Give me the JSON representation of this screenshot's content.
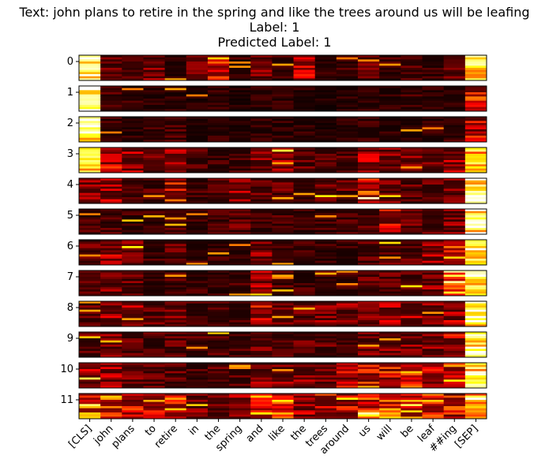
{
  "title": {
    "line1": "Text: john plans to retire in the spring and like the trees around us will be leafing",
    "line2": "Label: 1",
    "line3": "Predicted Label: 1"
  },
  "chart_data": {
    "type": "heatmap",
    "colormap": "hot",
    "layers": [
      "0",
      "1",
      "2",
      "3",
      "4",
      "5",
      "6",
      "7",
      "8",
      "9",
      "10",
      "11"
    ],
    "tokens": [
      "[CLS]",
      "john",
      "plans",
      "to",
      "retire",
      "in",
      "the",
      "spring",
      "and",
      "like",
      "the",
      "trees",
      "around",
      "us",
      "will",
      "be",
      "leaf",
      "##ing",
      "[SEP]"
    ],
    "heads_per_layer": 12,
    "layer_column_intensity": [
      [
        0.95,
        0.15,
        0.15,
        0.2,
        0.1,
        0.25,
        0.45,
        0.1,
        0.2,
        0.1,
        0.35,
        0.1,
        0.1,
        0.15,
        0.1,
        0.15,
        0.1,
        0.2,
        0.85
      ],
      [
        0.95,
        0.12,
        0.1,
        0.08,
        0.08,
        0.06,
        0.08,
        0.06,
        0.08,
        0.08,
        0.08,
        0.06,
        0.08,
        0.1,
        0.08,
        0.1,
        0.08,
        0.1,
        0.35
      ],
      [
        0.98,
        0.1,
        0.08,
        0.1,
        0.12,
        0.08,
        0.08,
        0.06,
        0.08,
        0.08,
        0.08,
        0.06,
        0.08,
        0.1,
        0.08,
        0.08,
        0.08,
        0.1,
        0.3
      ],
      [
        0.85,
        0.3,
        0.25,
        0.15,
        0.3,
        0.12,
        0.1,
        0.12,
        0.2,
        0.25,
        0.15,
        0.15,
        0.15,
        0.25,
        0.2,
        0.2,
        0.2,
        0.25,
        0.8
      ],
      [
        0.25,
        0.25,
        0.15,
        0.12,
        0.35,
        0.12,
        0.15,
        0.25,
        0.15,
        0.15,
        0.15,
        0.2,
        0.15,
        0.45,
        0.2,
        0.15,
        0.15,
        0.2,
        0.95
      ],
      [
        0.12,
        0.12,
        0.1,
        0.1,
        0.2,
        0.1,
        0.1,
        0.15,
        0.1,
        0.12,
        0.1,
        0.1,
        0.12,
        0.15,
        0.3,
        0.15,
        0.15,
        0.2,
        0.98
      ],
      [
        0.15,
        0.25,
        0.25,
        0.1,
        0.15,
        0.1,
        0.1,
        0.1,
        0.2,
        0.12,
        0.1,
        0.1,
        0.1,
        0.15,
        0.15,
        0.15,
        0.25,
        0.55,
        0.98
      ],
      [
        0.2,
        0.2,
        0.15,
        0.1,
        0.12,
        0.1,
        0.1,
        0.12,
        0.25,
        0.12,
        0.1,
        0.12,
        0.12,
        0.15,
        0.15,
        0.15,
        0.2,
        0.6,
        0.98
      ],
      [
        0.15,
        0.25,
        0.25,
        0.15,
        0.2,
        0.12,
        0.15,
        0.12,
        0.3,
        0.25,
        0.15,
        0.2,
        0.2,
        0.25,
        0.25,
        0.25,
        0.2,
        0.25,
        0.98
      ],
      [
        0.15,
        0.2,
        0.15,
        0.12,
        0.15,
        0.12,
        0.12,
        0.12,
        0.2,
        0.15,
        0.15,
        0.15,
        0.15,
        0.2,
        0.2,
        0.2,
        0.2,
        0.3,
        0.95
      ],
      [
        0.25,
        0.25,
        0.2,
        0.15,
        0.15,
        0.12,
        0.15,
        0.15,
        0.2,
        0.2,
        0.2,
        0.2,
        0.3,
        0.35,
        0.35,
        0.45,
        0.35,
        0.4,
        0.9
      ],
      [
        0.5,
        0.45,
        0.35,
        0.4,
        0.45,
        0.2,
        0.2,
        0.25,
        0.5,
        0.5,
        0.25,
        0.35,
        0.3,
        0.45,
        0.45,
        0.45,
        0.45,
        0.35,
        0.75
      ]
    ]
  }
}
